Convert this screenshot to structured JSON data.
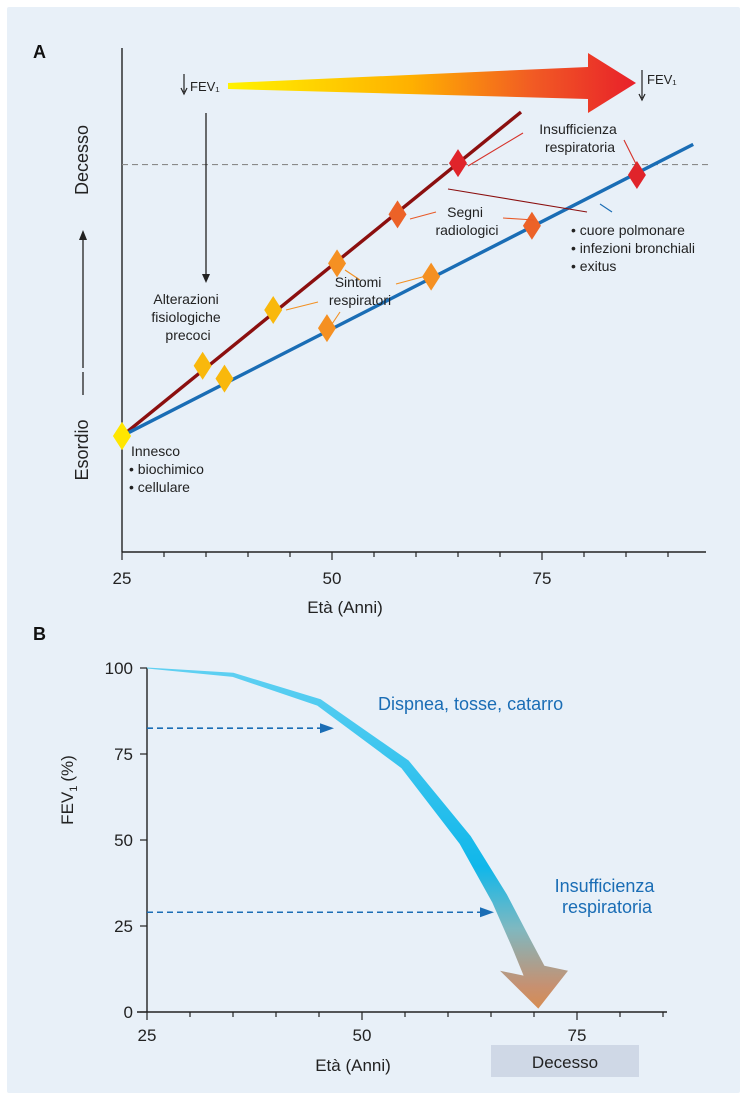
{
  "chart_data": [
    {
      "panel_label": "A",
      "type": "line",
      "xlabel": "Età (Anni)",
      "ylabel_top": "Decesso",
      "ylabel_bottom": "Esordio",
      "x_ticks": [
        "25",
        "50",
        "75"
      ],
      "xlim": [
        25,
        94
      ],
      "series": [
        {
          "color": "#8b0f0f",
          "points": [
            {
              "x": 25,
              "y": 0.0,
              "stage": 0
            },
            {
              "x": 34.6,
              "y": 0.202,
              "stage": 1
            },
            {
              "x": 43,
              "y": 0.362,
              "stage": 1
            },
            {
              "x": 50.6,
              "y": 0.496,
              "stage": 2
            },
            {
              "x": 57.8,
              "y": 0.637,
              "stage": 3
            },
            {
              "x": 65,
              "y": 0.784,
              "stage": 4
            }
          ],
          "end": {
            "x": 72.5,
            "y": 0.931
          }
        },
        {
          "color": "#1a6db5",
          "points": [
            {
              "x": 25,
              "y": 0.0,
              "stage": 0
            },
            {
              "x": 37.2,
              "y": 0.165,
              "stage": 1
            },
            {
              "x": 49.4,
              "y": 0.31,
              "stage": 2
            },
            {
              "x": 61.8,
              "y": 0.458,
              "stage": 2
            },
            {
              "x": 73.8,
              "y": 0.604,
              "stage": 3
            },
            {
              "x": 86.3,
              "y": 0.75,
              "stage": 4
            }
          ],
          "end": {
            "x": 93,
            "y": 0.838
          }
        }
      ],
      "threshold_y": 0.78,
      "stage_colors": [
        "#ffe600",
        "#f9b80c",
        "#f59022",
        "#ec6228",
        "#e0242a"
      ],
      "fev_left": "FEV₁",
      "fev_right": "FEV₁",
      "annotations": {
        "insufficienza": [
          "Insufficienza",
          "respiratoria"
        ],
        "segni": [
          "Segni",
          "radiologici"
        ],
        "sintomi": [
          "Sintomi",
          "respiratori"
        ],
        "alterazioni": [
          "Alterazioni",
          "fisiologiche",
          "precoci"
        ],
        "innesco": "Innesco",
        "innesco_list": [
          "• biochimico",
          "• cellulare"
        ],
        "complicanze": [
          "• cuore polmonare",
          "• infezioni bronchiali",
          "• exitus"
        ]
      }
    },
    {
      "panel_label": "B",
      "type": "area",
      "xlabel": "Età (Anni)",
      "ylabel": "FEV",
      "ylabel_sub": "1",
      "ylabel_unit": "(%)",
      "x_ticks": [
        "25",
        "50",
        "75"
      ],
      "y_ticks": [
        "0",
        "25",
        "50",
        "75",
        "100"
      ],
      "xlim": [
        25,
        86
      ],
      "ylim": [
        0,
        100
      ],
      "curve": [
        {
          "x": 25,
          "y": 100
        },
        {
          "x": 35,
          "y": 98
        },
        {
          "x": 45,
          "y": 90
        },
        {
          "x": 55,
          "y": 72
        },
        {
          "x": 62,
          "y": 50
        },
        {
          "x": 66,
          "y": 33
        },
        {
          "x": 68.5,
          "y": 20
        },
        {
          "x": 70,
          "y": 12
        }
      ],
      "arrow_tip": {
        "x": 70.5,
        "y": 1
      },
      "annotations": {
        "dispnea": {
          "text": "Dispnea, tosse, catarro",
          "level": 82.5
        },
        "insufficienza": {
          "lines": [
            "Insufficienza",
            "respiratoria"
          ],
          "level": 29
        }
      },
      "decesso": "Decesso"
    }
  ]
}
